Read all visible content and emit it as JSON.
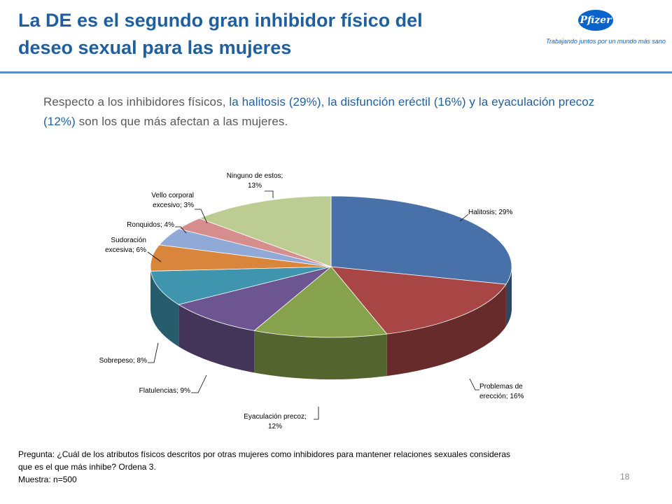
{
  "title_line1": "La DE es el segundo gran inhibidor físico del",
  "title_line2": "deseo sexual para las mujeres",
  "logo": {
    "brand": "Pfizer",
    "tagline": "Trabajando juntos por un mundo más sano"
  },
  "intro": {
    "p1": "Respecto a los inhibidores físicos, ",
    "h1": "la halitosis (29%), la disfunción eréctil (16%) y la eyaculación precoz (12%)",
    "p2": " son los que más afectan a las mujeres."
  },
  "chart_data": {
    "type": "pie",
    "style": "3d",
    "categories": [
      "Halitosis",
      "Problemas de erección",
      "Eyaculación precoz",
      "Flatulencias",
      "Sobrepeso",
      "Sudoración excesiva",
      "Ronquidos",
      "Vello corporal excesivo",
      "Ninguno de estos"
    ],
    "values": [
      29,
      16,
      12,
      9,
      8,
      6,
      4,
      3,
      13
    ],
    "data_labels": [
      [
        "Halitosis; 29%"
      ],
      [
        "Problemas de",
        "erección; 16%"
      ],
      [
        "Eyaculación precoz;",
        "12%"
      ],
      [
        "Flatulencias; 9%"
      ],
      [
        "Sobrepeso; 8%"
      ],
      [
        "Sudoración",
        "excesiva; 6%"
      ],
      [
        "Ronquidos; 4%"
      ],
      [
        "Vello corporal",
        "excesivo; 3%"
      ],
      [
        "Ninguno de estos;",
        "13%"
      ]
    ],
    "colors": [
      "#4771a8",
      "#a84545",
      "#87a24c",
      "#6c5591",
      "#3f95ae",
      "#d9853b",
      "#91a9d6",
      "#d68d8d",
      "#bccc93"
    ],
    "legend": "none"
  },
  "footnote": {
    "line1": "Pregunta: ¿Cuál de los atributos físicos descritos por otras mujeres como inhibidores para mantener relaciones sexuales  consideras",
    "line2": "que es el que más inhibe? Ordena 3.",
    "line3": "Muestra: n=500"
  },
  "page_number": "18"
}
